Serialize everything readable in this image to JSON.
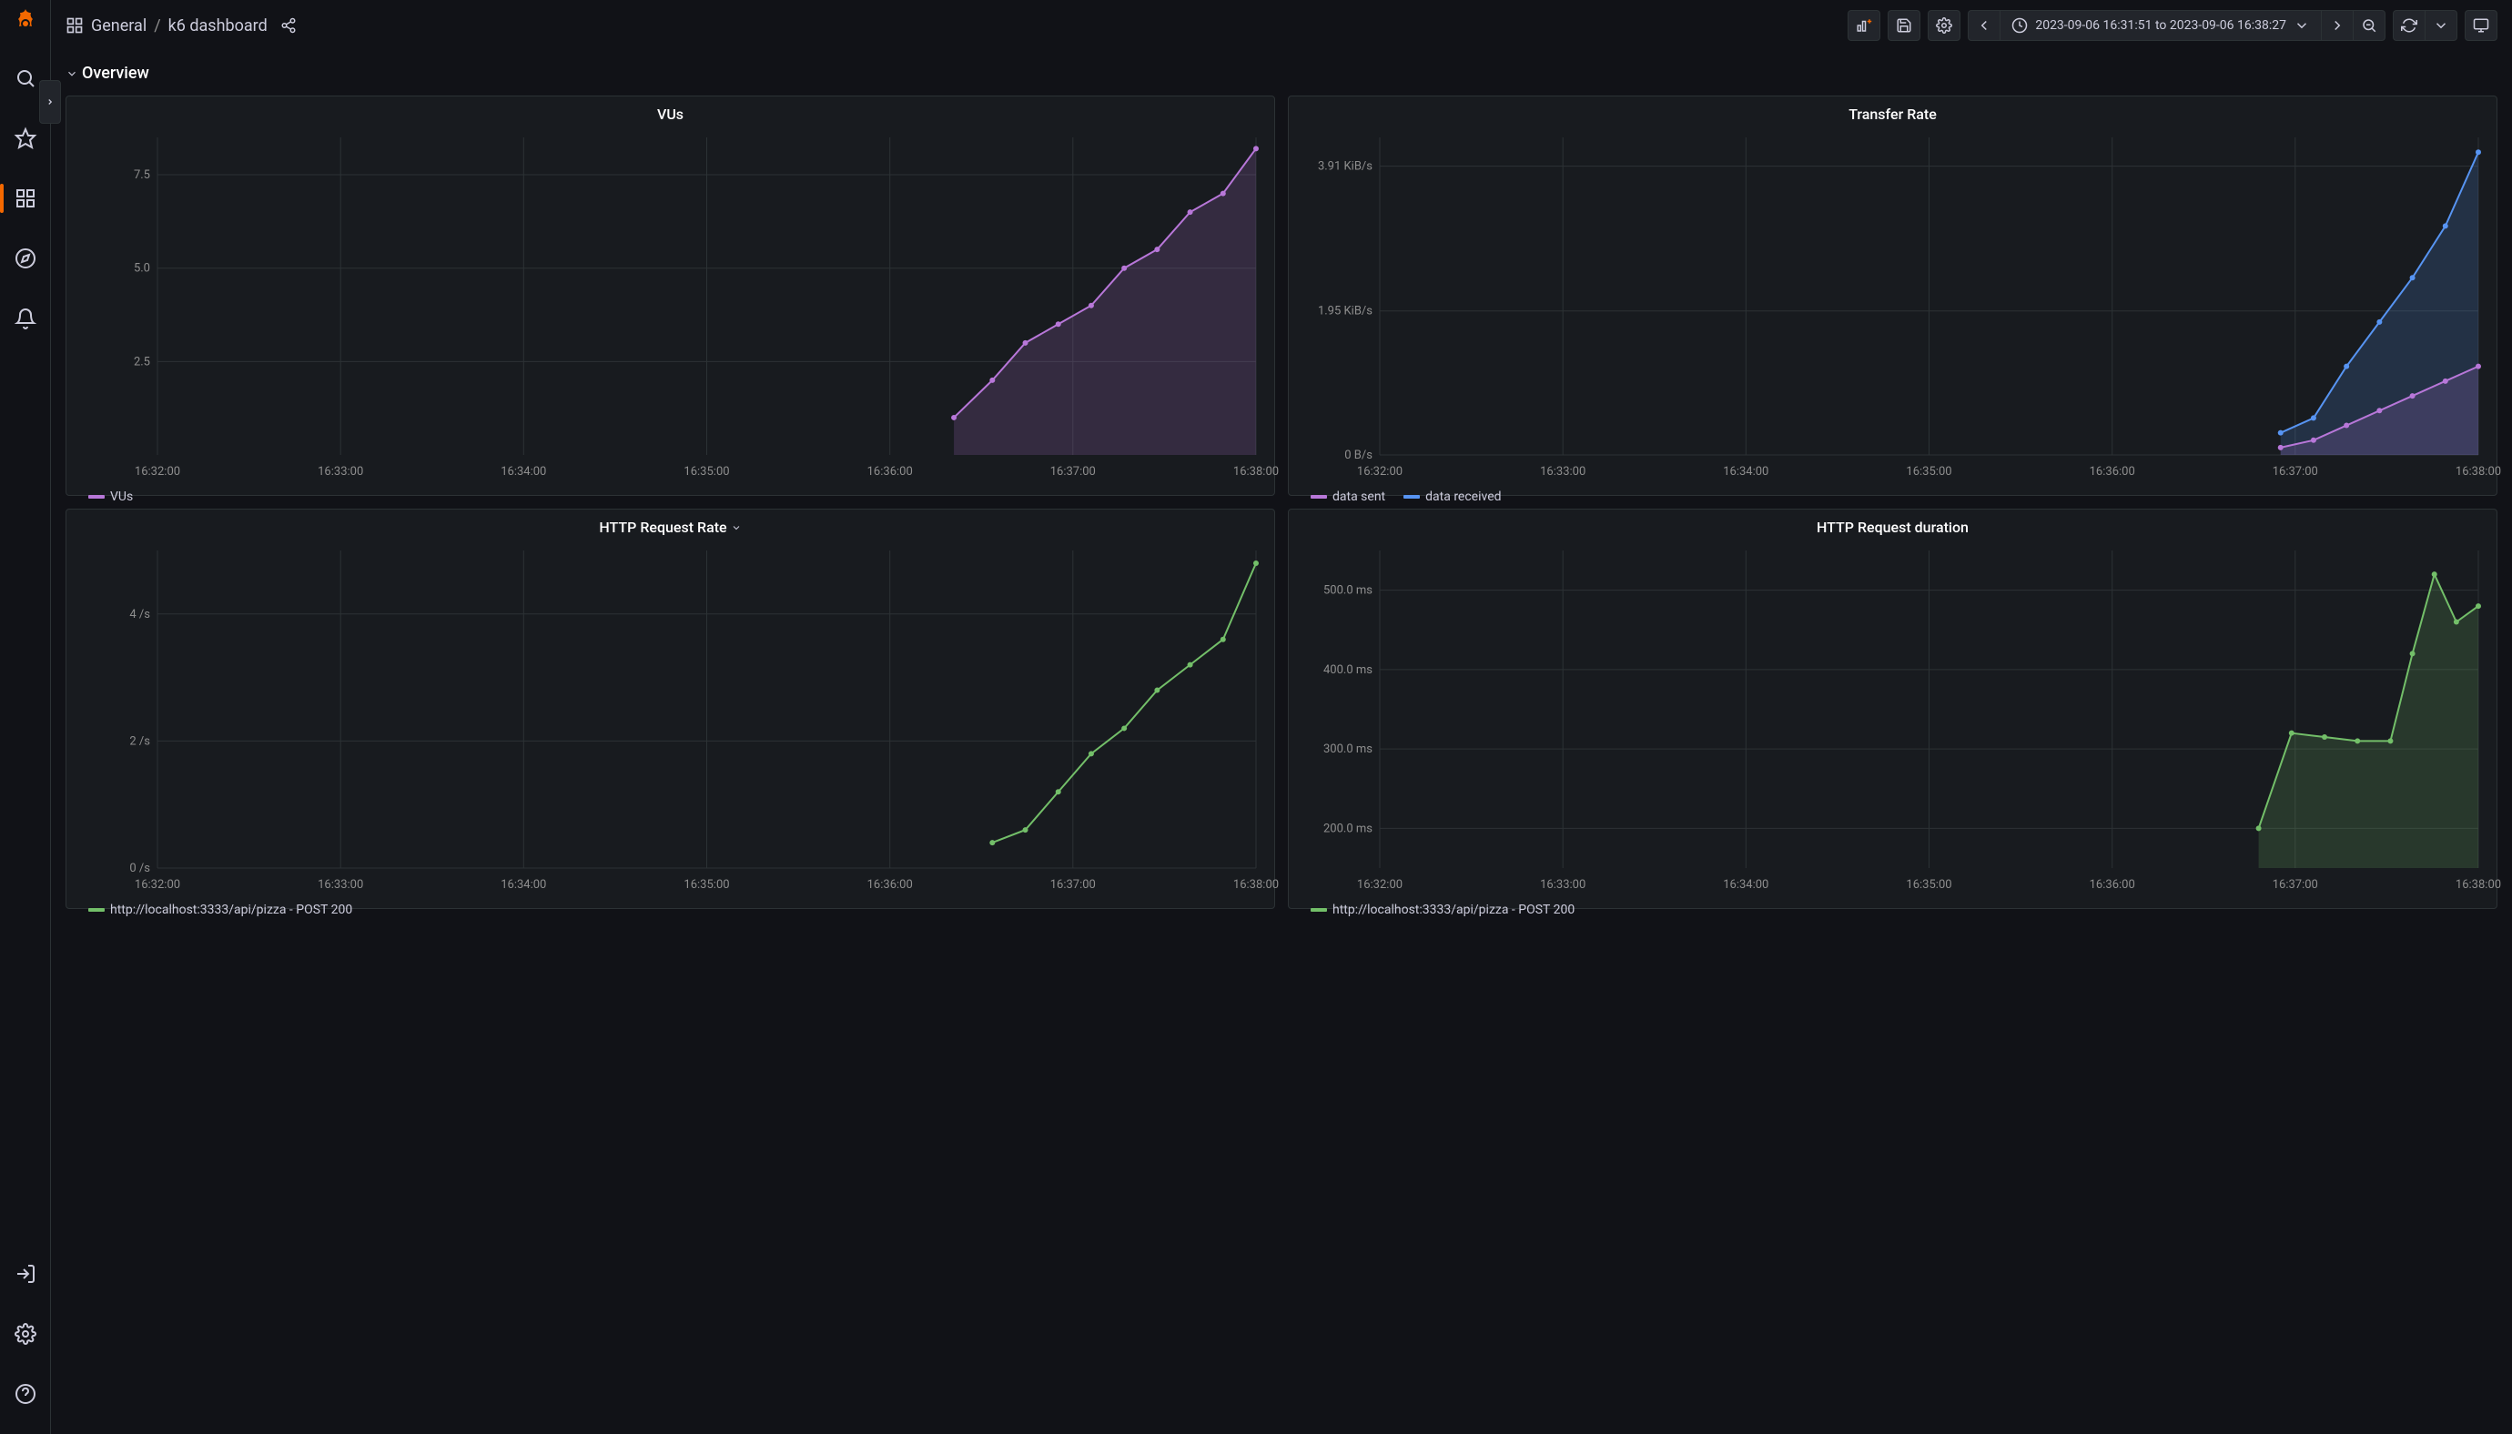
{
  "breadcrumb": {
    "folder": "General",
    "dashboard": "k6 dashboard"
  },
  "timeRange": "2023-09-06 16:31:51 to 2023-09-06 16:38:27",
  "sectionTitle": "Overview",
  "colors": {
    "bg": "#111217",
    "panel_bg": "#181b1f",
    "border": "#2c3235",
    "text": "#ccccdc",
    "text_muted": "#8e8e8e",
    "purple": "#b877d9",
    "purple_fill": "rgba(184,119,217,0.18)",
    "blue": "#5794f2",
    "blue_fill": "rgba(87,148,242,0.18)",
    "green": "#73bf69",
    "green_fill": "rgba(115,191,105,0.18)",
    "orange": "#f46800"
  },
  "x_ticks": [
    "16:32:00",
    "16:33:00",
    "16:34:00",
    "16:35:00",
    "16:36:00",
    "16:37:00",
    "16:38:00"
  ],
  "x_positions": [
    0,
    0.1667,
    0.3333,
    0.5,
    0.6667,
    0.8333,
    1.0
  ],
  "panels": {
    "vus": {
      "title": "VUs",
      "y_ticks": [
        "2.5",
        "5.0",
        "7.5"
      ],
      "y_tick_vals": [
        2.5,
        5.0,
        7.5
      ],
      "y_range": [
        0,
        8.5
      ],
      "legend": [
        {
          "label": "VUs",
          "color": "#b877d9"
        }
      ],
      "series": [
        {
          "color": "#b877d9",
          "fill": "rgba(184,119,217,0.18)",
          "points": [
            {
              "t": 0.725,
              "v": 1.0
            },
            {
              "t": 0.76,
              "v": 2.0
            },
            {
              "t": 0.79,
              "v": 3.0
            },
            {
              "t": 0.82,
              "v": 3.5
            },
            {
              "t": 0.85,
              "v": 4.0
            },
            {
              "t": 0.88,
              "v": 5.0
            },
            {
              "t": 0.91,
              "v": 5.5
            },
            {
              "t": 0.94,
              "v": 6.5
            },
            {
              "t": 0.97,
              "v": 7.0
            },
            {
              "t": 1.0,
              "v": 8.2
            }
          ]
        }
      ]
    },
    "transfer": {
      "title": "Transfer Rate",
      "y_ticks": [
        "0 B/s",
        "1.95 KiB/s",
        "3.91 KiB/s"
      ],
      "y_tick_vals": [
        0,
        1.95,
        3.91
      ],
      "y_range": [
        0,
        4.3
      ],
      "legend": [
        {
          "label": "data sent",
          "color": "#b877d9"
        },
        {
          "label": "data received",
          "color": "#5794f2"
        }
      ],
      "series": [
        {
          "color": "#5794f2",
          "fill": "rgba(87,148,242,0.18)",
          "points": [
            {
              "t": 0.82,
              "v": 0.3
            },
            {
              "t": 0.85,
              "v": 0.5
            },
            {
              "t": 0.88,
              "v": 1.2
            },
            {
              "t": 0.91,
              "v": 1.8
            },
            {
              "t": 0.94,
              "v": 2.4
            },
            {
              "t": 0.97,
              "v": 3.1
            },
            {
              "t": 1.0,
              "v": 4.1
            }
          ]
        },
        {
          "color": "#b877d9",
          "fill": "rgba(184,119,217,0.18)",
          "points": [
            {
              "t": 0.82,
              "v": 0.1
            },
            {
              "t": 0.85,
              "v": 0.2
            },
            {
              "t": 0.88,
              "v": 0.4
            },
            {
              "t": 0.91,
              "v": 0.6
            },
            {
              "t": 0.94,
              "v": 0.8
            },
            {
              "t": 0.97,
              "v": 1.0
            },
            {
              "t": 1.0,
              "v": 1.2
            }
          ]
        }
      ]
    },
    "http_rate": {
      "title": "HTTP Request Rate",
      "has_dropdown": true,
      "y_ticks": [
        "0 /s",
        "2 /s",
        "4 /s"
      ],
      "y_tick_vals": [
        0,
        2,
        4
      ],
      "y_range": [
        0,
        5
      ],
      "legend": [
        {
          "label": "http://localhost:3333/api/pizza - POST 200",
          "color": "#73bf69"
        }
      ],
      "series": [
        {
          "color": "#73bf69",
          "fill": "none",
          "points": [
            {
              "t": 0.76,
              "v": 0.4
            },
            {
              "t": 0.79,
              "v": 0.6
            },
            {
              "t": 0.82,
              "v": 1.2
            },
            {
              "t": 0.85,
              "v": 1.8
            },
            {
              "t": 0.88,
              "v": 2.2
            },
            {
              "t": 0.91,
              "v": 2.8
            },
            {
              "t": 0.94,
              "v": 3.2
            },
            {
              "t": 0.97,
              "v": 3.6
            },
            {
              "t": 1.0,
              "v": 4.8
            }
          ]
        }
      ]
    },
    "http_dur": {
      "title": "HTTP Request duration",
      "y_ticks": [
        "200.0 ms",
        "300.0 ms",
        "400.0 ms",
        "500.0 ms"
      ],
      "y_tick_vals": [
        200,
        300,
        400,
        500
      ],
      "y_range": [
        150,
        550
      ],
      "legend": [
        {
          "label": "http://localhost:3333/api/pizza - POST 200",
          "color": "#73bf69"
        }
      ],
      "series": [
        {
          "color": "#73bf69",
          "fill": "rgba(115,191,105,0.18)",
          "points": [
            {
              "t": 0.8,
              "v": 200
            },
            {
              "t": 0.83,
              "v": 320
            },
            {
              "t": 0.86,
              "v": 315
            },
            {
              "t": 0.89,
              "v": 310
            },
            {
              "t": 0.92,
              "v": 310
            },
            {
              "t": 0.94,
              "v": 420
            },
            {
              "t": 0.96,
              "v": 520
            },
            {
              "t": 0.98,
              "v": 460
            },
            {
              "t": 1.0,
              "v": 480
            }
          ]
        }
      ]
    }
  }
}
